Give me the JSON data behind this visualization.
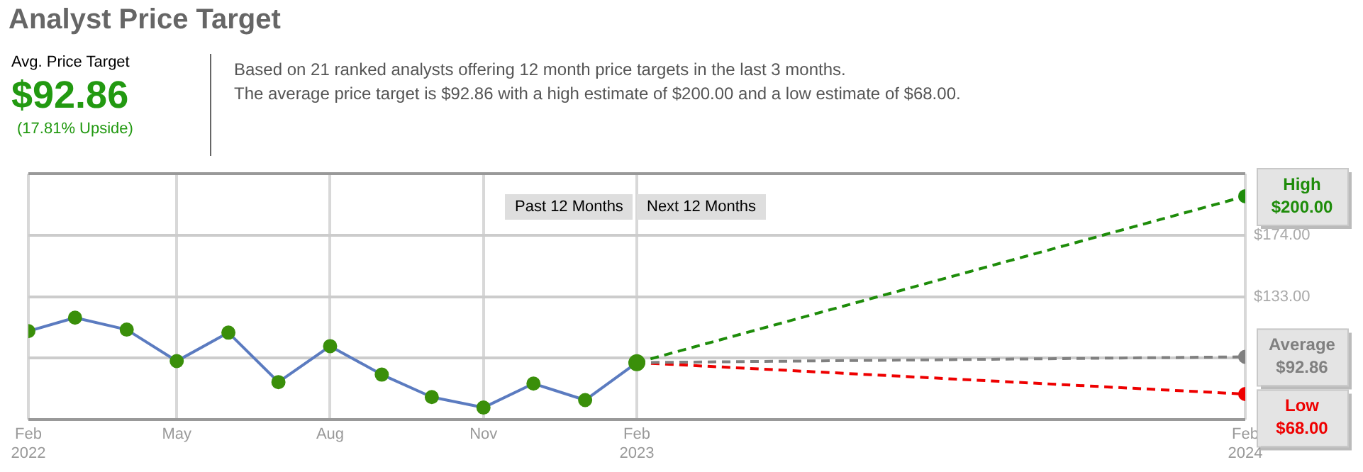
{
  "chart_data": {
    "type": "line",
    "title": "Analyst Price Target",
    "annotations": [
      "Avg. Price Target",
      "$92.86",
      "(17.81% Upside)",
      "Based on 21 ranked analysts offering 12 month price targets in the last 3 months.",
      "The average price target is $92.86 with a high estimate of $200.00 and a low estimate of $68.00.",
      "Past 12 Months",
      "Next 12 Months"
    ],
    "series": [
      {
        "x": [
          "2022-02",
          "2022-03",
          "2022-04",
          "2022-05",
          "2022-06",
          "2022-07",
          "2022-08",
          "2022-09",
          "2022-10",
          "2022-11",
          "2022-12",
          "2023-01",
          "2023-02"
        ],
        "values": [
          110,
          119,
          111,
          90,
          109,
          76,
          100,
          81,
          66,
          59,
          75,
          64,
          89
        ],
        "color": "#5b7bc0",
        "colors": [
          "#3a8f0a",
          "#3a8f0a",
          "#3a8f0a",
          "#3a8f0a",
          "#3a8f0a",
          "#3a8f0a",
          "#3a8f0a",
          "#3a8f0a",
          "#3a8f0a",
          "#3a8f0a",
          "#3a8f0a",
          "#3a8f0a",
          "#3a8f0a"
        ],
        "line_style": "solid"
      },
      {
        "name": "High",
        "x": [
          "2023-02",
          "2024-02"
        ],
        "values": [
          89,
          200
        ],
        "color": "#1e8c0a",
        "line_style": "dashed",
        "value_labels": [
          null,
          "$200.00"
        ]
      },
      {
        "name": "Average",
        "x": [
          "2023-02",
          "2024-02"
        ],
        "values": [
          89,
          92.86
        ],
        "color": "#808080",
        "line_style": "dashed",
        "value_labels": [
          null,
          "$92.86"
        ]
      },
      {
        "name": "Low",
        "x": [
          "2023-02",
          "2024-02"
        ],
        "values": [
          89,
          68
        ],
        "color": "#ee0000",
        "line_style": "dashed",
        "value_labels": [
          null,
          "$68.00"
        ]
      }
    ],
    "xlim": [
      "2022-02",
      "2024-02"
    ],
    "xticks": [
      {
        "value": "2022-02",
        "label": "Feb\n2022"
      },
      {
        "value": "2022-05",
        "label": "May"
      },
      {
        "value": "2022-08",
        "label": "Aug"
      },
      {
        "value": "2022-11",
        "label": "Nov"
      },
      {
        "value": "2023-02",
        "label": "Feb\n2023"
      },
      {
        "value": "2024-02",
        "label": "Feb\n2024"
      }
    ],
    "ylim": [
      51,
      215
    ],
    "yticks": [
      {
        "value": 51,
        "label": null
      },
      {
        "value": 92,
        "label": null
      },
      {
        "value": 133,
        "label": "$133.00"
      },
      {
        "value": 174,
        "label": "$174.00"
      },
      {
        "value": 215,
        "label": null
      }
    ],
    "grid": true,
    "legend": false,
    "marker": "circle"
  }
}
